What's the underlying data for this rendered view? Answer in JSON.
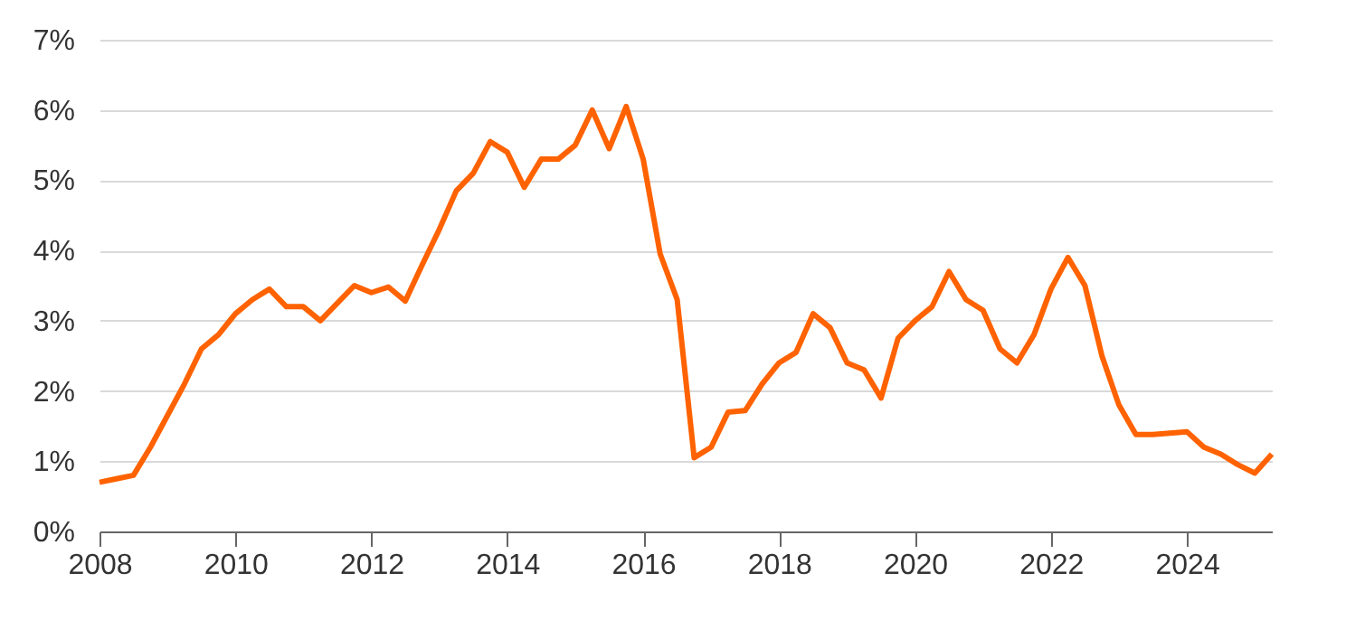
{
  "chart_data": {
    "type": "line",
    "x": [
      2008,
      2008.25,
      2008.5,
      2008.75,
      2009,
      2009.25,
      2009.5,
      2009.75,
      2010,
      2010.25,
      2010.5,
      2010.75,
      2011,
      2011.25,
      2011.5,
      2011.75,
      2012,
      2012.25,
      2012.5,
      2012.75,
      2013,
      2013.25,
      2013.5,
      2013.75,
      2014,
      2014.25,
      2014.5,
      2014.75,
      2015,
      2015.25,
      2015.5,
      2015.75,
      2016,
      2016.25,
      2016.5,
      2016.75,
      2017,
      2017.25,
      2017.5,
      2017.75,
      2018,
      2018.25,
      2018.5,
      2018.75,
      2019,
      2019.25,
      2019.5,
      2019.75,
      2020,
      2020.25,
      2020.5,
      2020.75,
      2021,
      2021.25,
      2021.5,
      2021.75,
      2022,
      2022.25,
      2022.5,
      2022.75,
      2023,
      2023.25,
      2023.5,
      2023.75,
      2024,
      2024.25,
      2024.5,
      2024.75,
      2025,
      2025.25
    ],
    "series": [
      {
        "color": "#ff6200",
        "values": [
          0.7,
          0.75,
          0.8,
          1.2,
          1.65,
          2.1,
          2.6,
          2.8,
          3.1,
          3.3,
          3.45,
          3.2,
          3.2,
          3.0,
          3.25,
          3.5,
          3.4,
          3.48,
          3.28,
          3.8,
          4.3,
          4.85,
          5.1,
          5.55,
          5.4,
          4.9,
          5.3,
          5.3,
          5.5,
          6.0,
          5.45,
          6.05,
          5.3,
          3.95,
          3.3,
          1.05,
          1.2,
          1.7,
          1.72,
          2.1,
          2.4,
          2.55,
          3.1,
          2.9,
          2.4,
          2.3,
          1.9,
          2.75,
          3.0,
          3.2,
          3.7,
          3.3,
          3.15,
          2.6,
          2.4,
          2.8,
          3.45,
          3.9,
          3.5,
          2.5,
          1.8,
          1.38,
          1.38,
          1.4,
          1.42,
          1.2,
          1.1,
          0.95,
          0.83,
          1.1
        ]
      }
    ],
    "xlim": [
      2008,
      2025.25
    ],
    "xticks": [
      2008,
      2010,
      2012,
      2014,
      2016,
      2018,
      2020,
      2022,
      2024
    ],
    "ylim": [
      0,
      7
    ],
    "yticks": [
      {
        "value": 0,
        "label": "0%"
      },
      {
        "value": 1,
        "label": "1%"
      },
      {
        "value": 2,
        "label": "2%"
      },
      {
        "value": 3,
        "label": "3%"
      },
      {
        "value": 4,
        "label": "4%"
      },
      {
        "value": 5,
        "label": "5%"
      },
      {
        "value": 6,
        "label": "6%"
      },
      {
        "value": 7,
        "label": "7%"
      }
    ],
    "grid": "y",
    "marker": "none",
    "line_style": "solid"
  }
}
